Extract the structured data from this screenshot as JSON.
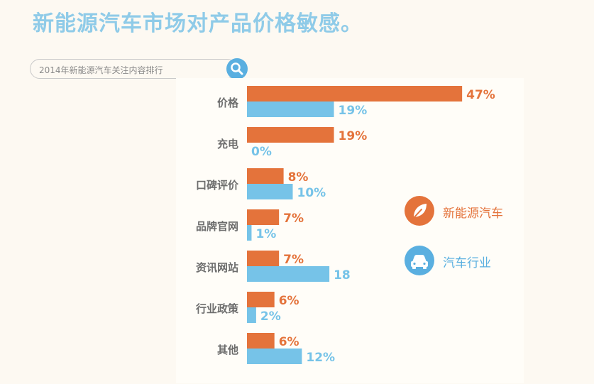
{
  "headline": "新能源汽车市场对产品价格敏感。",
  "search": {
    "text": "2014年新能源汽车关注内容排行",
    "icon": "search-icon"
  },
  "colors": {
    "orange": "#e4733b",
    "blue": "#76c3e8",
    "gray": "#6d6d6d"
  },
  "legend": [
    {
      "label": "新能源汽车",
      "icon": "leaf-icon",
      "color": "#e4733b"
    },
    {
      "label": "汽车行业",
      "icon": "car-icon",
      "color": "#5aafe0"
    }
  ],
  "chart_data": {
    "type": "bar",
    "orientation": "horizontal",
    "categories": [
      "价格",
      "充电",
      "口碑评价",
      "品牌官网",
      "资讯网站",
      "行业政策",
      "其他"
    ],
    "series": [
      {
        "name": "新能源汽车",
        "values": [
          47,
          19,
          8,
          7,
          7,
          6,
          6
        ],
        "labels": [
          "47%",
          "19%",
          "8%",
          "7%",
          "7%",
          "6%",
          "6%"
        ]
      },
      {
        "name": "汽车行业",
        "values": [
          19,
          0,
          10,
          1,
          18,
          2,
          12
        ],
        "labels": [
          "19%",
          "0%",
          "10%",
          "1%",
          "18",
          "2%",
          "12%"
        ]
      }
    ],
    "unit": "%",
    "legend_position": "right",
    "grid": false
  }
}
